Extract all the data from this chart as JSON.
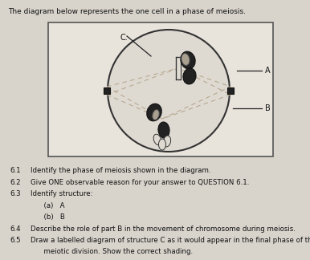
{
  "title": "The diagram below represents the one cell in a phase of meiosis.",
  "bg_color": "#d8d4cc",
  "box_facecolor": "#e8e4dc",
  "cell_facecolor": "#dedad2",
  "spindle_color": "#b8a890",
  "chrom_dark": "#222222",
  "chrom_outline": "#111111",
  "label_A": "A",
  "label_B": "B",
  "label_C": "C.",
  "questions": [
    [
      "6.1",
      "Identify the phase of meiosis shown in the diagram."
    ],
    [
      "6.2",
      "Give ONE observable reason for your answer to QUESTION 6.1."
    ],
    [
      "6.3",
      "Identify structure:"
    ],
    [
      "",
      "      (a)   A"
    ],
    [
      "",
      "      (b)   B"
    ],
    [
      "6.4",
      "Describe the role of part B in the movement of chromosome during meiosis."
    ],
    [
      "6.5",
      "Draw a labelled diagram of structure C as it would appear in the final phase of this"
    ],
    [
      "",
      "      meiotic division. Show the correct shading."
    ]
  ]
}
